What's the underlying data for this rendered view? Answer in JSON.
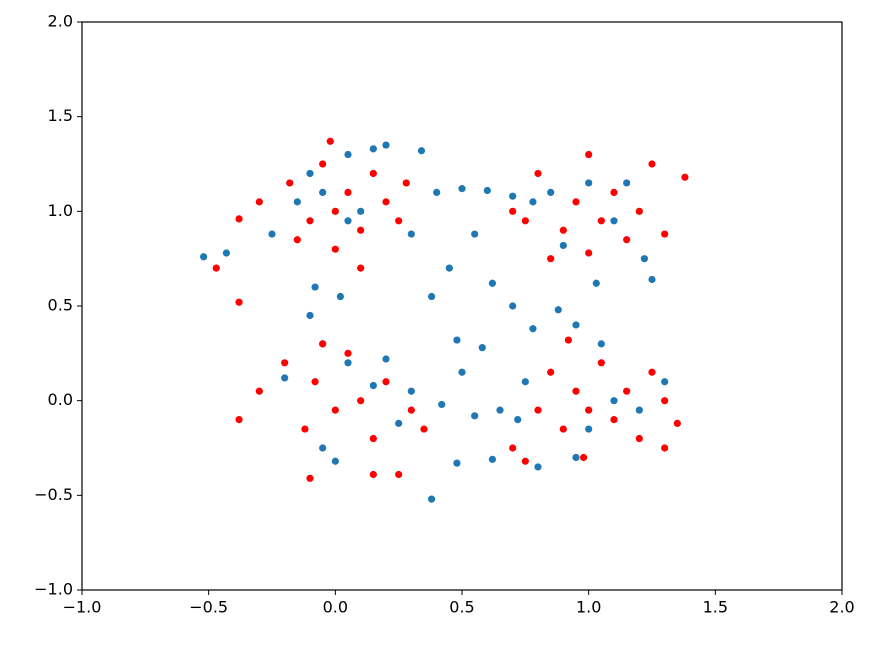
{
  "chart_data": {
    "type": "scatter",
    "xlim": [
      -1,
      2
    ],
    "ylim": [
      -1,
      2
    ],
    "xticks": [
      {
        "value": -1,
        "label": "−1.0"
      },
      {
        "value": -0.5,
        "label": "−0.5"
      },
      {
        "value": 0,
        "label": "0.0"
      },
      0.5,
      {
        "value": 1,
        "label": "1.0"
      },
      1.5,
      {
        "value": 2,
        "label": "2.0"
      }
    ],
    "yticks": [
      {
        "value": -1,
        "label": "−1.0"
      },
      {
        "value": -0.5,
        "label": "−0.5"
      },
      {
        "value": 0,
        "label": "0.0"
      },
      0.5,
      {
        "value": 1,
        "label": "1.0"
      },
      1.5,
      {
        "value": 2,
        "label": "2.0"
      }
    ],
    "series": [
      {
        "color": "#1f77b4",
        "x": [
          -0.52,
          -0.43,
          -0.25,
          -0.1,
          0.05,
          0.2,
          0.34,
          0.15,
          -0.05,
          0.1,
          0.3,
          0.4,
          0.5,
          0.6,
          0.7,
          0.55,
          0.45,
          0.62,
          0.38,
          0.7,
          0.48,
          0.58,
          0.5,
          0.42,
          0.55,
          0.65,
          0.62,
          0.48,
          0.38,
          -0.08,
          -0.05,
          -0.1,
          0.02,
          0.05,
          -0.2,
          -0.05,
          0.0,
          0.15,
          0.3,
          0.25,
          0.8,
          0.95,
          1.0,
          1.1,
          1.05,
          0.95,
          1.03,
          0.88,
          0.78,
          1.2,
          1.3,
          1.15,
          1.0,
          0.85,
          0.78,
          1.25,
          1.22,
          0.9,
          1.1,
          0.75,
          0.72,
          0.2,
          -0.15,
          0.05
        ],
        "y": [
          0.76,
          0.78,
          0.88,
          1.2,
          1.3,
          1.35,
          1.32,
          1.33,
          1.1,
          1.0,
          0.88,
          1.1,
          1.12,
          1.11,
          1.08,
          0.88,
          0.7,
          0.62,
          0.55,
          0.5,
          0.32,
          0.28,
          0.15,
          -0.02,
          -0.08,
          -0.05,
          -0.31,
          -0.33,
          -0.52,
          0.6,
          0.3,
          0.45,
          0.55,
          0.2,
          0.12,
          -0.25,
          -0.32,
          0.08,
          0.05,
          -0.12,
          -0.35,
          -0.3,
          -0.15,
          0.0,
          0.3,
          0.4,
          0.62,
          0.48,
          0.38,
          -0.05,
          0.1,
          1.15,
          1.15,
          1.1,
          1.05,
          0.64,
          0.75,
          0.82,
          0.95,
          0.1,
          -0.1,
          0.22,
          1.05,
          0.95
        ]
      },
      {
        "color": "#ff0000",
        "x": [
          -0.47,
          -0.38,
          -0.3,
          -0.18,
          -0.1,
          -0.05,
          0.0,
          0.05,
          0.1,
          0.15,
          0.2,
          0.25,
          0.28,
          -0.15,
          0.0,
          0.1,
          -0.38,
          -0.02,
          0.7,
          0.8,
          0.9,
          0.95,
          1.0,
          1.05,
          1.1,
          1.15,
          1.2,
          1.25,
          1.38,
          0.85,
          1.0,
          1.3,
          0.75,
          -0.38,
          -0.3,
          -0.2,
          -0.12,
          -0.08,
          0.0,
          0.05,
          0.1,
          0.15,
          0.2,
          0.3,
          -0.05,
          -0.1,
          0.15,
          0.25,
          0.35,
          0.7,
          0.8,
          0.85,
          0.9,
          0.95,
          1.0,
          1.05,
          1.1,
          1.15,
          1.2,
          1.25,
          1.3,
          1.35,
          0.98,
          0.75,
          1.3,
          0.92
        ],
        "y": [
          0.7,
          0.96,
          1.05,
          1.15,
          0.95,
          1.25,
          1.0,
          1.1,
          0.9,
          1.2,
          1.05,
          0.95,
          1.15,
          0.85,
          0.8,
          0.7,
          0.52,
          1.37,
          1.0,
          1.2,
          0.9,
          1.05,
          1.3,
          0.95,
          1.1,
          0.85,
          1.0,
          1.25,
          1.18,
          0.75,
          0.78,
          0.88,
          0.95,
          -0.1,
          0.05,
          0.2,
          -0.15,
          0.1,
          -0.05,
          0.25,
          0.0,
          -0.2,
          0.1,
          -0.05,
          0.3,
          -0.41,
          -0.39,
          -0.39,
          -0.15,
          -0.25,
          -0.05,
          0.15,
          -0.15,
          0.05,
          -0.05,
          0.2,
          -0.1,
          0.05,
          -0.2,
          0.15,
          0.0,
          -0.12,
          -0.3,
          -0.32,
          -0.25,
          0.32
        ]
      }
    ]
  }
}
